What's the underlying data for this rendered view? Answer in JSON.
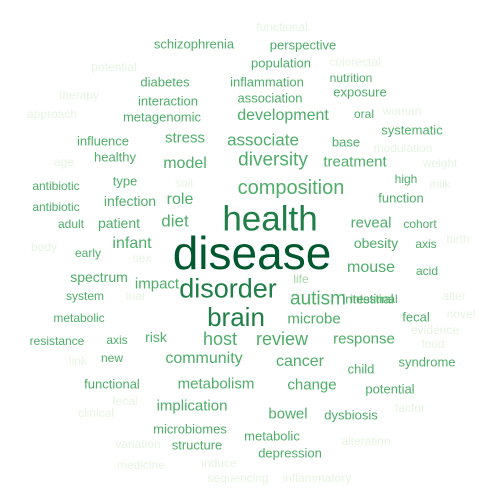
{
  "word_cloud": {
    "palette": {
      "darkest": "#00582e",
      "dark": "#1f7f46",
      "medium": "#4fae69",
      "light": "#a3d6a4",
      "lightest": "#e7f5e2"
    },
    "words": [
      {
        "text": "disease",
        "tone": "darkest"
      },
      {
        "text": "health",
        "tone": "dark"
      },
      {
        "text": "disorder",
        "tone": "dark"
      },
      {
        "text": "brain",
        "tone": "dark"
      },
      {
        "text": "composition",
        "tone": "medium"
      },
      {
        "text": "diversity",
        "tone": "medium"
      },
      {
        "text": "autism",
        "tone": "medium"
      },
      {
        "text": "associate",
        "tone": "medium"
      },
      {
        "text": "host",
        "tone": "medium"
      },
      {
        "text": "review",
        "tone": "medium"
      },
      {
        "text": "development",
        "tone": "medium"
      },
      {
        "text": "model",
        "tone": "medium"
      },
      {
        "text": "diet",
        "tone": "medium"
      },
      {
        "text": "role",
        "tone": "medium"
      },
      {
        "text": "mouse",
        "tone": "medium"
      },
      {
        "text": "cancer",
        "tone": "medium"
      },
      {
        "text": "community",
        "tone": "medium"
      },
      {
        "text": "microbe",
        "tone": "medium"
      },
      {
        "text": "infant",
        "tone": "medium"
      },
      {
        "text": "stress",
        "tone": "medium"
      },
      {
        "text": "reveal",
        "tone": "medium"
      },
      {
        "text": "treatment",
        "tone": "medium"
      },
      {
        "text": "obesity",
        "tone": "medium"
      },
      {
        "text": "impact",
        "tone": "medium"
      },
      {
        "text": "metabolism",
        "tone": "medium"
      },
      {
        "text": "response",
        "tone": "medium"
      },
      {
        "text": "change",
        "tone": "medium"
      },
      {
        "text": "implication",
        "tone": "medium"
      },
      {
        "text": "bowel",
        "tone": "medium"
      },
      {
        "text": "risk",
        "tone": "medium"
      },
      {
        "text": "spectrum",
        "tone": "medium"
      },
      {
        "text": "patient",
        "tone": "medium"
      },
      {
        "text": "infection",
        "tone": "medium"
      },
      {
        "text": "association",
        "tone": "medium"
      },
      {
        "text": "base",
        "tone": "medium"
      },
      {
        "text": "population",
        "tone": "medium"
      },
      {
        "text": "inflammation",
        "tone": "medium"
      },
      {
        "text": "interaction",
        "tone": "medium"
      },
      {
        "text": "metagenomic",
        "tone": "medium"
      },
      {
        "text": "healthy",
        "tone": "medium"
      },
      {
        "text": "type",
        "tone": "medium"
      },
      {
        "text": "intestinal",
        "tone": "medium"
      },
      {
        "text": "fecal",
        "tone": "medium"
      },
      {
        "text": "function",
        "tone": "medium"
      },
      {
        "text": "depression",
        "tone": "medium"
      },
      {
        "text": "dysbiosis",
        "tone": "medium"
      },
      {
        "text": "metabolic",
        "tone": "medium"
      },
      {
        "text": "microbiomes",
        "tone": "medium"
      },
      {
        "text": "structure",
        "tone": "medium"
      },
      {
        "text": "child",
        "tone": "medium"
      },
      {
        "text": "syndrome",
        "tone": "medium"
      },
      {
        "text": "functional",
        "tone": "medium"
      },
      {
        "text": "potential",
        "tone": "medium"
      },
      {
        "text": "exposure",
        "tone": "medium"
      },
      {
        "text": "systematic",
        "tone": "medium"
      },
      {
        "text": "schizophrenia",
        "tone": "medium"
      },
      {
        "text": "perspective",
        "tone": "medium"
      },
      {
        "text": "diabetes",
        "tone": "medium"
      },
      {
        "text": "influence",
        "tone": "medium"
      },
      {
        "text": "cohort",
        "tone": "medium"
      },
      {
        "text": "high",
        "tone": "medium"
      },
      {
        "text": "oral",
        "tone": "medium"
      },
      {
        "text": "early",
        "tone": "medium"
      },
      {
        "text": "system",
        "tone": "medium"
      },
      {
        "text": "axis",
        "tone": "medium"
      },
      {
        "text": "new",
        "tone": "medium"
      },
      {
        "text": "resistance",
        "tone": "medium"
      },
      {
        "text": "metabolic",
        "tone": "medium"
      },
      {
        "text": "acid",
        "tone": "medium"
      },
      {
        "text": "life",
        "tone": "light"
      },
      {
        "text": "adult",
        "tone": "medium"
      },
      {
        "text": "antibiotic",
        "tone": "medium"
      },
      {
        "text": "antibiotic",
        "tone": "medium"
      },
      {
        "text": "intestinal",
        "tone": "medium"
      },
      {
        "text": "axis",
        "tone": "medium"
      },
      {
        "text": "nutrition",
        "tone": "medium"
      },
      {
        "text": "functional",
        "tone": "lightest"
      },
      {
        "text": "colorectal",
        "tone": "lightest"
      },
      {
        "text": "potential",
        "tone": "lightest"
      },
      {
        "text": "therapy",
        "tone": "lightest"
      },
      {
        "text": "approach",
        "tone": "lightest"
      },
      {
        "text": "woman",
        "tone": "lightest"
      },
      {
        "text": "age",
        "tone": "lightest"
      },
      {
        "text": "modulation",
        "tone": "lightest"
      },
      {
        "text": "weight",
        "tone": "lightest"
      },
      {
        "text": "milk",
        "tone": "lightest"
      },
      {
        "text": "soil",
        "tone": "lightest"
      },
      {
        "text": "body",
        "tone": "lightest"
      },
      {
        "text": "sex",
        "tone": "lightest"
      },
      {
        "text": "birth",
        "tone": "lightest"
      },
      {
        "text": "trial",
        "tone": "lightest"
      },
      {
        "text": "alter",
        "tone": "lightest"
      },
      {
        "text": "novel",
        "tone": "lightest"
      },
      {
        "text": "evidence",
        "tone": "lightest"
      },
      {
        "text": "food",
        "tone": "lightest"
      },
      {
        "text": "link",
        "tone": "lightest"
      },
      {
        "text": "clinical",
        "tone": "lightest"
      },
      {
        "text": "fecal",
        "tone": "lightest"
      },
      {
        "text": "factor",
        "tone": "lightest"
      },
      {
        "text": "variation",
        "tone": "lightest"
      },
      {
        "text": "alteration",
        "tone": "lightest"
      },
      {
        "text": "medicine",
        "tone": "lightest"
      },
      {
        "text": "induce",
        "tone": "lightest"
      },
      {
        "text": "sequencing",
        "tone": "lightest"
      },
      {
        "text": "inflammatory",
        "tone": "lightest"
      }
    ]
  }
}
